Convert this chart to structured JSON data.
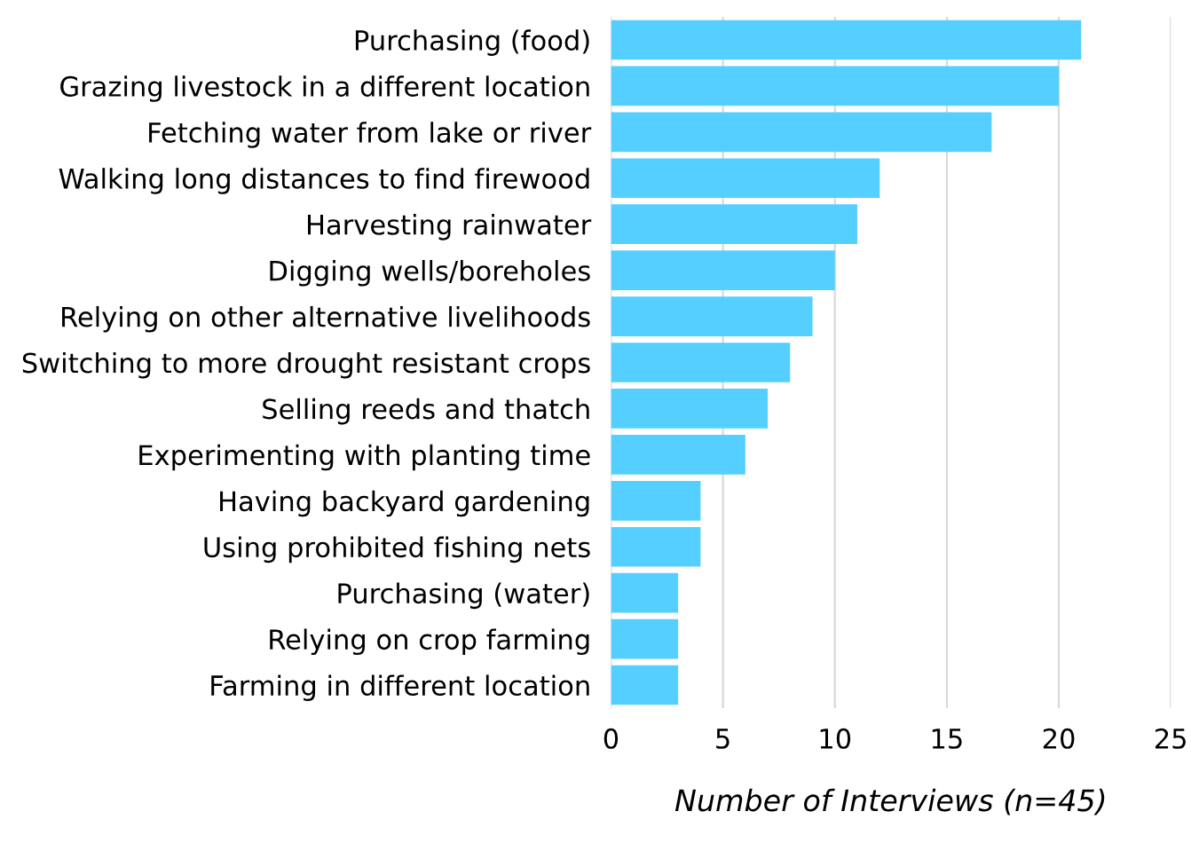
{
  "chart_data": {
    "type": "bar",
    "orientation": "horizontal",
    "categories": [
      "Purchasing (food)",
      "Grazing livestock in a different location",
      "Fetching water from lake or river",
      "Walking long distances to find firewood",
      "Harvesting rainwater",
      "Digging wells/boreholes",
      "Relying on other alternative livelihoods",
      "Switching to more drought resistant crops",
      "Selling reeds and thatch",
      "Experimenting with planting time",
      "Having backyard gardening",
      "Using prohibited fishing nets",
      "Purchasing (water)",
      "Relying on crop farming",
      "Farming in different location"
    ],
    "values": [
      21,
      20,
      17,
      12,
      11,
      10,
      9,
      8,
      7,
      6,
      4,
      4,
      3,
      3,
      3
    ],
    "color": "#55cfff",
    "xlabel": "Number of Interviews (n=45)",
    "xlim": [
      0,
      25
    ],
    "xticks": [
      0,
      5,
      10,
      15,
      20,
      25
    ],
    "grid": "x"
  }
}
